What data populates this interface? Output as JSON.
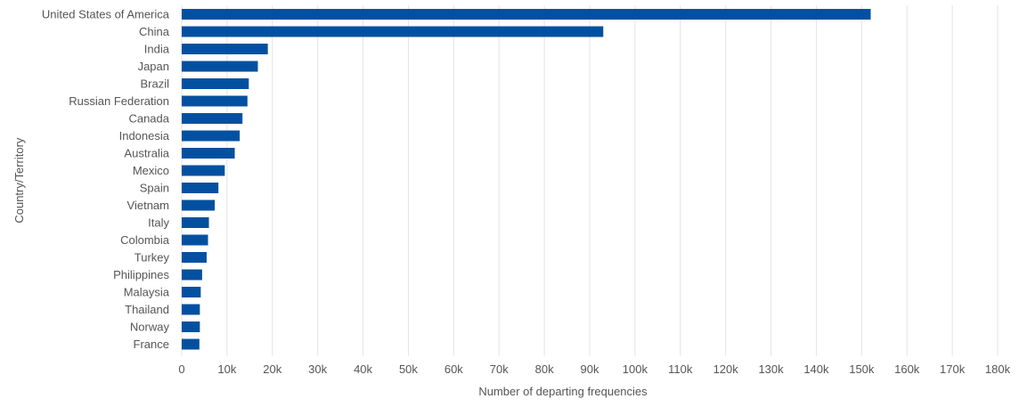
{
  "chart_data": {
    "type": "bar",
    "orientation": "horizontal",
    "title": "",
    "xlabel": "Number of departing frequencies",
    "ylabel": "Country/Territory",
    "xlim": [
      0,
      180000
    ],
    "grid": true,
    "legend": "none",
    "bar_color": "#0450a0",
    "categories": [
      "United States of America",
      "China",
      "India",
      "Japan",
      "Brazil",
      "Russian Federation",
      "Canada",
      "Indonesia",
      "Australia",
      "Mexico",
      "Spain",
      "Vietnam",
      "Italy",
      "Colombia",
      "Turkey",
      "Philippines",
      "Malaysia",
      "Thailand",
      "Norway",
      "France"
    ],
    "values": [
      152000,
      93000,
      19000,
      16800,
      14800,
      14500,
      13400,
      12800,
      11700,
      9500,
      8100,
      7300,
      6000,
      5800,
      5500,
      4500,
      4200,
      4000,
      4000,
      3900
    ],
    "x_ticks": [
      "0",
      "10k",
      "20k",
      "30k",
      "40k",
      "50k",
      "60k",
      "70k",
      "80k",
      "90k",
      "100k",
      "110k",
      "120k",
      "130k",
      "140k",
      "150k",
      "160k",
      "170k",
      "180k"
    ]
  }
}
